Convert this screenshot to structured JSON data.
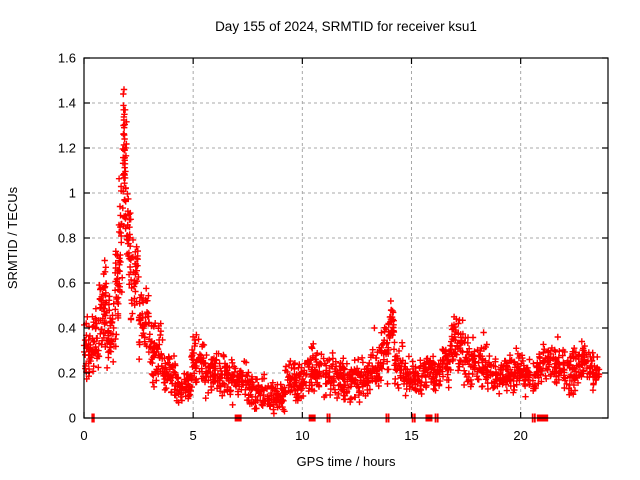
{
  "chart_data": {
    "type": "scatter",
    "title": "Day 155 of 2024, SRMTID for receiver ksu1",
    "xlabel": "GPS time / hours",
    "ylabel": "SRMTID / TECUs",
    "series_name": "SRMTID",
    "xlim": [
      0,
      24
    ],
    "ylim": [
      0,
      1.6
    ],
    "xticks": [
      0,
      5,
      10,
      15,
      20
    ],
    "yticks": [
      0,
      0.2,
      0.4,
      0.6,
      0.8,
      1,
      1.2,
      1.4,
      1.6
    ],
    "grid": true,
    "grid_color": "#a8a8a8",
    "legend_position": "none",
    "marker": {
      "shape": "plus",
      "color": "#ff0000",
      "size": 7
    },
    "background": "#ffffff",
    "border_color": "#000000",
    "peak": {
      "x": 1.83,
      "y": 1.47
    },
    "envelope_bins": [
      [
        0.0,
        0.3,
        0.15,
        0.45,
        30
      ],
      [
        0.3,
        0.7,
        0.16,
        0.5,
        40
      ],
      [
        0.7,
        1.05,
        0.25,
        0.72,
        45
      ],
      [
        1.05,
        1.4,
        0.2,
        0.55,
        40
      ],
      [
        1.4,
        1.6,
        0.3,
        0.85,
        28
      ],
      [
        1.6,
        1.75,
        0.5,
        1.1,
        25
      ],
      [
        1.75,
        1.95,
        0.7,
        1.47,
        40
      ],
      [
        1.95,
        2.15,
        0.55,
        1.05,
        30
      ],
      [
        2.15,
        2.5,
        0.4,
        0.8,
        35
      ],
      [
        2.5,
        3.0,
        0.25,
        0.6,
        45
      ],
      [
        3.0,
        3.6,
        0.12,
        0.45,
        55
      ],
      [
        3.6,
        4.2,
        0.08,
        0.3,
        50
      ],
      [
        4.2,
        4.9,
        0.05,
        0.22,
        50
      ],
      [
        4.9,
        5.5,
        0.12,
        0.38,
        50
      ],
      [
        5.5,
        6.5,
        0.07,
        0.3,
        75
      ],
      [
        6.5,
        7.5,
        0.05,
        0.27,
        75
      ],
      [
        7.5,
        8.3,
        0.03,
        0.22,
        60
      ],
      [
        8.3,
        9.2,
        0.02,
        0.17,
        65
      ],
      [
        9.2,
        10.2,
        0.05,
        0.27,
        75
      ],
      [
        10.2,
        11.0,
        0.08,
        0.33,
        60
      ],
      [
        11.0,
        12.0,
        0.06,
        0.3,
        75
      ],
      [
        12.0,
        13.0,
        0.06,
        0.28,
        75
      ],
      [
        13.0,
        13.6,
        0.1,
        0.35,
        45
      ],
      [
        13.6,
        13.95,
        0.15,
        0.42,
        25
      ],
      [
        13.95,
        14.2,
        0.25,
        0.52,
        28
      ],
      [
        14.2,
        14.6,
        0.1,
        0.35,
        30
      ],
      [
        14.6,
        15.5,
        0.07,
        0.28,
        65
      ],
      [
        15.5,
        16.3,
        0.1,
        0.3,
        60
      ],
      [
        16.3,
        16.8,
        0.12,
        0.35,
        40
      ],
      [
        16.8,
        17.4,
        0.18,
        0.46,
        50
      ],
      [
        17.4,
        18.0,
        0.12,
        0.38,
        45
      ],
      [
        18.0,
        18.6,
        0.1,
        0.35,
        45
      ],
      [
        18.6,
        19.4,
        0.08,
        0.3,
        60
      ],
      [
        19.4,
        20.2,
        0.1,
        0.32,
        60
      ],
      [
        20.2,
        21.0,
        0.08,
        0.3,
        60
      ],
      [
        21.0,
        21.8,
        0.1,
        0.35,
        60
      ],
      [
        21.8,
        22.5,
        0.1,
        0.33,
        55
      ],
      [
        22.5,
        23.1,
        0.12,
        0.35,
        45
      ],
      [
        23.1,
        23.6,
        0.12,
        0.3,
        35
      ]
    ],
    "highlight_points": [
      [
        1.8,
        1.44
      ],
      [
        1.83,
        1.46
      ],
      [
        1.82,
        1.37
      ],
      [
        1.85,
        1.35
      ],
      [
        1.81,
        1.3
      ],
      [
        1.86,
        1.24
      ],
      [
        1.84,
        1.19
      ],
      [
        1.88,
        1.13
      ],
      [
        1.79,
        1.08
      ],
      [
        1.9,
        1.02
      ],
      [
        0.95,
        0.7
      ],
      [
        1.0,
        0.67
      ],
      [
        0.9,
        0.64
      ],
      [
        5.15,
        0.37
      ],
      [
        5.25,
        0.35
      ],
      [
        10.5,
        0.33
      ],
      [
        10.45,
        0.31
      ],
      [
        13.3,
        0.4
      ],
      [
        14.05,
        0.52
      ],
      [
        14.08,
        0.48
      ],
      [
        14.03,
        0.45
      ],
      [
        14.1,
        0.43
      ],
      [
        16.95,
        0.45
      ],
      [
        17.05,
        0.44
      ],
      [
        17.15,
        0.42
      ],
      [
        16.85,
        0.41
      ],
      [
        18.3,
        0.38
      ],
      [
        19.8,
        0.31
      ],
      [
        21.7,
        0.36
      ],
      [
        22.8,
        0.34
      ],
      [
        23.3,
        0.29
      ],
      [
        8.7,
        0.02
      ],
      [
        0.15,
        0.45
      ],
      [
        0.1,
        0.42
      ]
    ],
    "bottom_markers": {
      "color": "#ff0000",
      "squares": [
        7.06,
        10.45,
        15.8,
        20.9,
        21.0,
        21.1
      ],
      "ticks": [
        0.38,
        0.45,
        11.15,
        11.25,
        13.85,
        13.95,
        15.05,
        15.15,
        16.1,
        16.2,
        20.55,
        20.65
      ]
    },
    "seed": 155
  }
}
